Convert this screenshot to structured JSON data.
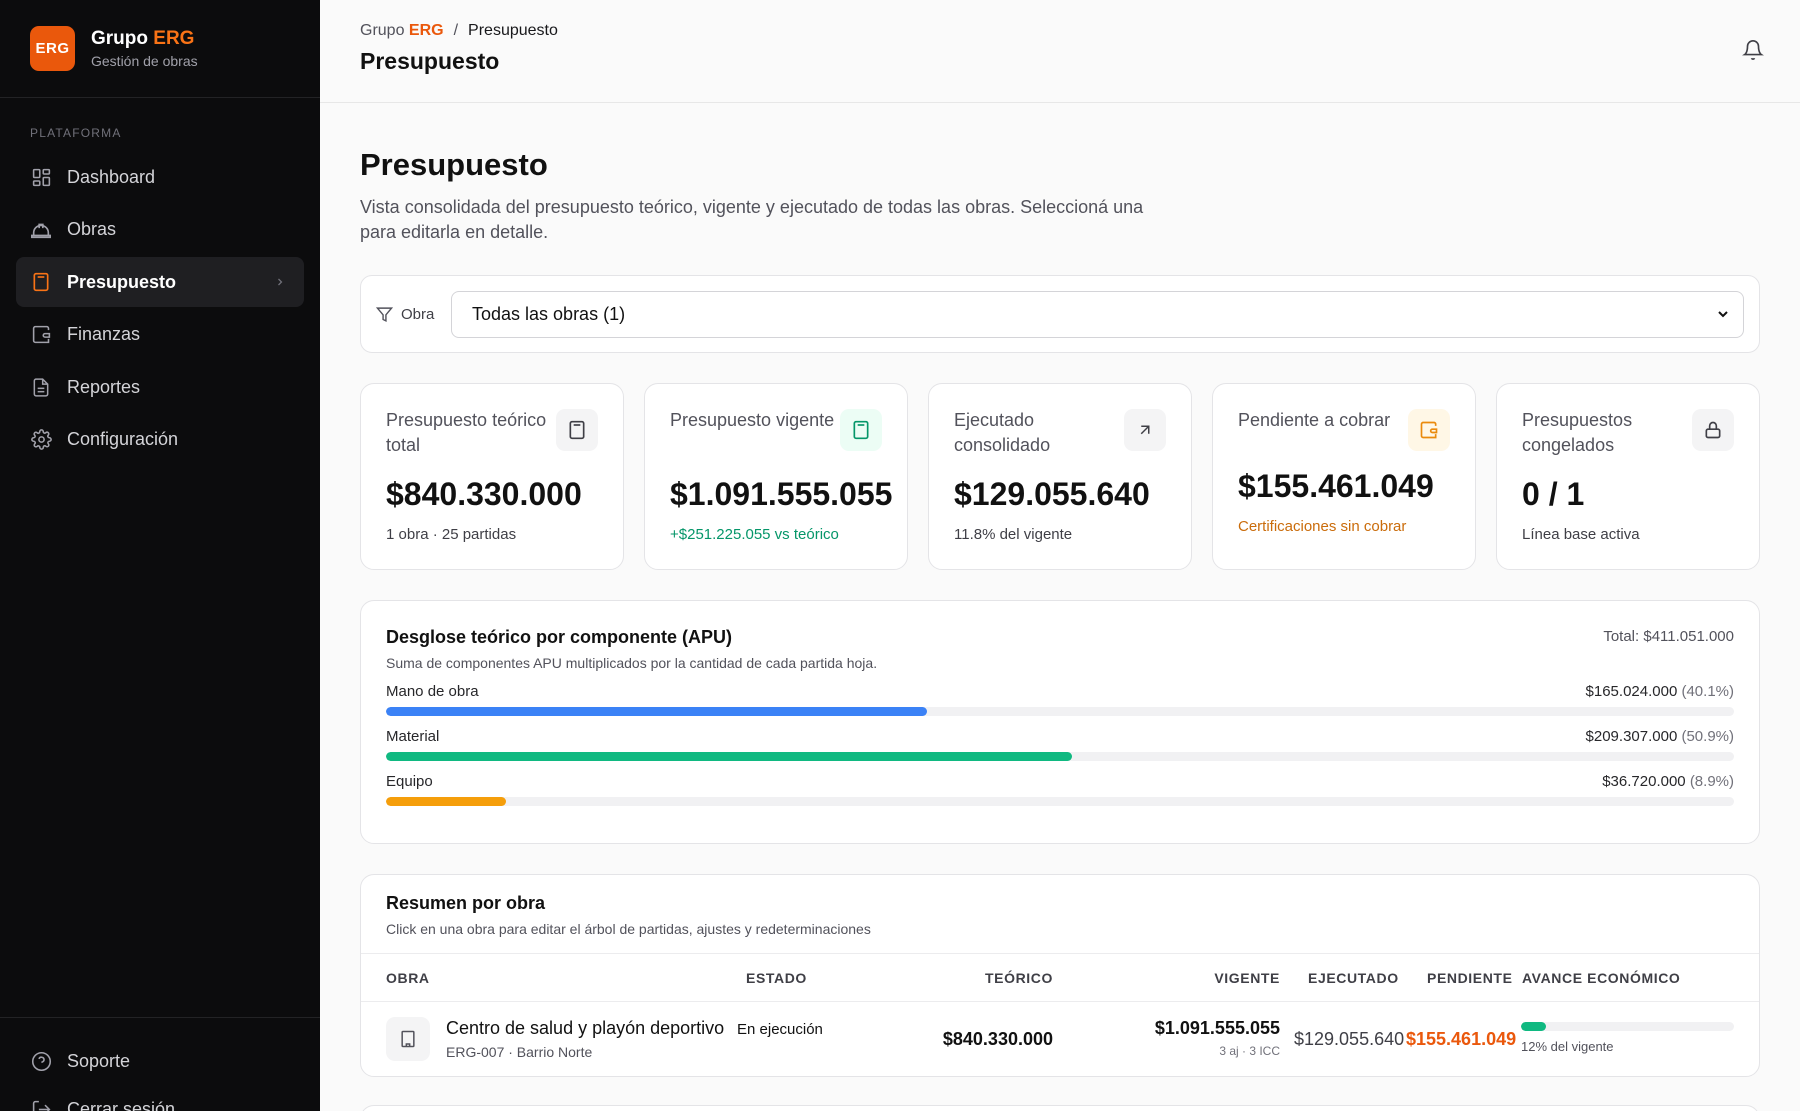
{
  "brand": {
    "logo": "ERG",
    "name_prefix": "Grupo",
    "name_accent": "ERG",
    "subtitle": "Gestión de obras"
  },
  "sidebar": {
    "section_label": "PLATAFORMA",
    "items": [
      {
        "label": "Dashboard",
        "icon": "dashboard-icon"
      },
      {
        "label": "Obras",
        "icon": "hardhat-icon"
      },
      {
        "label": "Presupuesto",
        "icon": "calculator-icon",
        "active": true
      },
      {
        "label": "Finanzas",
        "icon": "wallet-icon"
      },
      {
        "label": "Reportes",
        "icon": "file-text-icon"
      },
      {
        "label": "Configuración",
        "icon": "gear-icon"
      }
    ],
    "bottom": [
      {
        "label": "Soporte",
        "icon": "help-icon"
      },
      {
        "label": "Cerrar sesión",
        "icon": "logout-icon"
      }
    ]
  },
  "header": {
    "breadcrumb": {
      "root_prefix": "Grupo",
      "root_accent": "ERG",
      "separator": "/",
      "current": "Presupuesto"
    },
    "title": "Presupuesto"
  },
  "page": {
    "title": "Presupuesto",
    "description": "Vista consolidada del presupuesto teórico, vigente y ejecutado de todas las obras. Seleccioná una para editarla en detalle."
  },
  "filter": {
    "label": "Obra",
    "selected": "Todas las obras (1)"
  },
  "kpis": [
    {
      "label": "Presupuesto teórico total",
      "value": "$840.330.000",
      "sub": "1 obra · 25 partidas",
      "icon": "calculator-icon"
    },
    {
      "label": "Presupuesto vigente",
      "value": "$1.091.555.055",
      "sub": "+$251.225.055 vs teórico",
      "icon": "calculator-icon"
    },
    {
      "label": "Ejecutado consolidado",
      "value": "$129.055.640",
      "sub": "11.8% del vigente",
      "icon": "arrow-up-right-icon"
    },
    {
      "label": "Pendiente a cobrar",
      "value": "$155.461.049",
      "sub": "Certificaciones sin cobrar",
      "icon": "wallet-icon"
    },
    {
      "label": "Presupuestos congelados",
      "value": "0 / 1",
      "sub": "Línea base activa",
      "icon": "lock-icon"
    }
  ],
  "apu": {
    "title": "Desglose teórico por componente (APU)",
    "subtitle": "Suma de componentes APU multiplicados por la cantidad de cada partida hoja.",
    "total": "Total: $411.051.000",
    "rows": [
      {
        "label": "Mano de obra",
        "amount": "$165.024.000",
        "pct": "(40.1%)",
        "fraction": 0.401,
        "color": "#3b82f6"
      },
      {
        "label": "Material",
        "amount": "$209.307.000",
        "pct": "(50.9%)",
        "fraction": 0.509,
        "color": "#10b981"
      },
      {
        "label": "Equipo",
        "amount": "$36.720.000",
        "pct": "(8.9%)",
        "fraction": 0.089,
        "color": "#f59e0b"
      }
    ]
  },
  "summary": {
    "title": "Resumen por obra",
    "subtitle": "Click en una obra para editar el árbol de partidas, ajustes y redeterminaciones",
    "columns": {
      "obra": "OBRA",
      "estado": "ESTADO",
      "teorico": "TEÓRICO",
      "vigente": "VIGENTE",
      "ejecutado": "EJECUTADO",
      "pendiente": "PENDIENTE",
      "avance": "AVANCE ECONÓMICO"
    },
    "rows": [
      {
        "name": "Centro de salud y playón deportivo",
        "code": "ERG-007 · Barrio Norte",
        "estado": "En ejecución",
        "teorico": "$840.330.000",
        "vigente": "$1.091.555.055",
        "vigente_sub": "3 aj · 3 ICC",
        "ejecutado": "$129.055.640",
        "pendiente": "$155.461.049",
        "avance_fraction": 0.118,
        "avance_label": "12% del vigente"
      }
    ]
  }
}
